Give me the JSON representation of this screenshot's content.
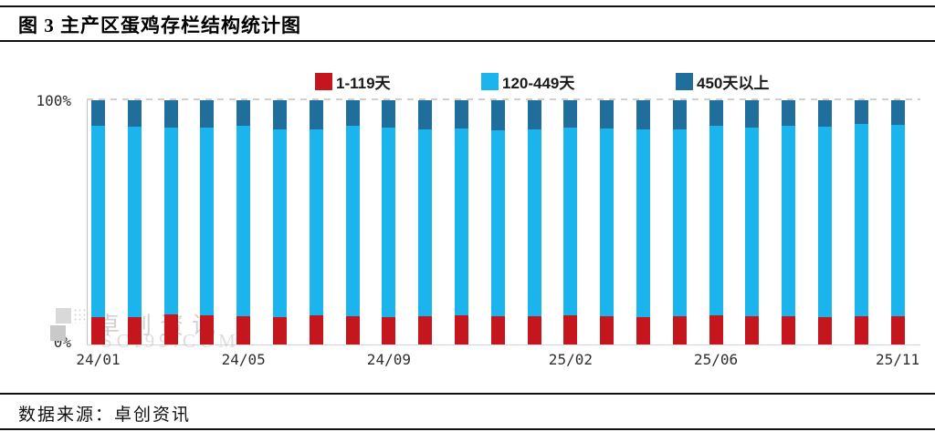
{
  "title": "图 3 主产区蛋鸡存栏结构统计图",
  "source": {
    "label": "数据来源：卓创资讯"
  },
  "watermark": {
    "name": "卓创资讯",
    "domain": "SCI99.COM"
  },
  "axis": {
    "y_top": "100%",
    "y_bottom": "0%"
  },
  "colors": {
    "red": "#C4161C",
    "cyan": "#1CB4EC",
    "steel_blue": "#1F6E9C",
    "gridline": "#CFCFCF"
  },
  "chart_data": {
    "type": "bar",
    "stacked": true,
    "title": "图 3 主产区蛋鸡存栏结构统计图",
    "xlabel": "",
    "ylabel": "",
    "ylim": [
      0,
      100
    ],
    "y_tick_labels": [
      "0%",
      "100%"
    ],
    "grid": "dashed horizontal line at 100% only",
    "legend_position": "top",
    "categories": [
      "24/01",
      "24/02",
      "24/03",
      "24/04",
      "24/05",
      "24/06",
      "24/07",
      "24/08",
      "24/09",
      "24/10",
      "24/11",
      "24/12",
      "25/01",
      "25/02",
      "25/03",
      "25/04",
      "25/05",
      "25/06",
      "25/07",
      "25/08",
      "25/09",
      "25/10",
      "25/11"
    ],
    "x_tick_labels": [
      "24/01",
      "24/05",
      "24/09",
      "25/02",
      "25/06",
      "25/11"
    ],
    "x_tick_indices": [
      0,
      4,
      8,
      13,
      17,
      22
    ],
    "series": [
      {
        "name": "1-119天",
        "color": "#C4161C",
        "values": [
          11.2,
          11.2,
          12.3,
          11.9,
          11.6,
          11.2,
          12.0,
          11.6,
          11.2,
          11.6,
          12.0,
          11.6,
          11.6,
          12.0,
          11.6,
          11.2,
          11.6,
          12.0,
          11.6,
          11.6,
          11.2,
          11.6,
          11.6
        ]
      },
      {
        "name": "120-449天",
        "color": "#1CB4EC",
        "values": [
          78.4,
          78.0,
          76.5,
          76.9,
          78.0,
          76.9,
          76.1,
          78.0,
          77.6,
          76.5,
          76.4,
          76.1,
          76.6,
          76.8,
          76.8,
          76.9,
          76.5,
          77.6,
          77.2,
          78.0,
          78.0,
          78.7,
          78.3
        ]
      },
      {
        "name": "450天以上",
        "color": "#1F6E9C",
        "values": [
          10.4,
          10.8,
          11.2,
          11.2,
          10.4,
          11.9,
          11.9,
          10.4,
          11.2,
          11.9,
          11.6,
          12.3,
          11.8,
          11.2,
          11.6,
          11.9,
          11.9,
          10.4,
          11.2,
          10.4,
          10.8,
          9.7,
          10.1
        ]
      }
    ]
  }
}
